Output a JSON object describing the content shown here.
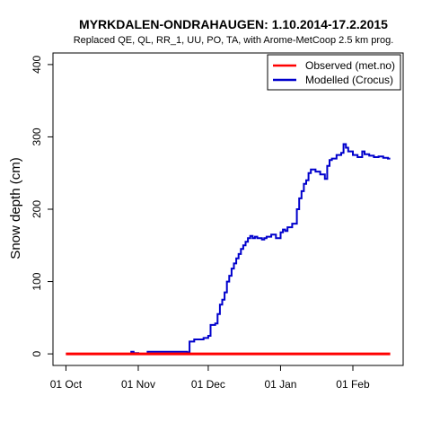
{
  "chart_data": {
    "type": "line",
    "title": "MYRKDALEN-ONDRAHAUGEN: 1.10.2014-17.2.2015",
    "subtitle": "Replaced QE, QL, RR_1, UU, PO, TA,  with Arome-MetCoop 2.5 km prog.",
    "xlabel": "",
    "ylabel": "Snow depth (cm)",
    "xlim": [
      "2014-10-01",
      "2015-02-17"
    ],
    "ylim": [
      0,
      400
    ],
    "yticks": [
      0,
      100,
      200,
      300,
      400
    ],
    "xticks": [
      {
        "date": "2014-10-01",
        "label": "01 Oct"
      },
      {
        "date": "2014-11-01",
        "label": "01 Nov"
      },
      {
        "date": "2014-12-01",
        "label": "01 Dec"
      },
      {
        "date": "2015-01-01",
        "label": "01 Jan"
      },
      {
        "date": "2015-02-01",
        "label": "01 Feb"
      }
    ],
    "grid": false,
    "legend": "top-right",
    "series": [
      {
        "name": "Observed (met.no)",
        "color": "#ff0000",
        "step": false,
        "x": [
          "2014-10-01",
          "2015-02-17"
        ],
        "y": [
          0,
          0
        ]
      },
      {
        "name": "Modelled (Crocus)",
        "color": "#0000cc",
        "step": true,
        "x": [
          "2014-10-01",
          "2014-10-29",
          "2014-10-30",
          "2014-11-01",
          "2014-11-05",
          "2014-11-22",
          "2014-11-23",
          "2014-11-25",
          "2014-11-29",
          "2014-12-01",
          "2014-12-02",
          "2014-12-04",
          "2014-12-05",
          "2014-12-06",
          "2014-12-07",
          "2014-12-08",
          "2014-12-09",
          "2014-12-10",
          "2014-12-11",
          "2014-12-12",
          "2014-12-13",
          "2014-12-14",
          "2014-12-15",
          "2014-12-16",
          "2014-12-17",
          "2014-12-18",
          "2014-12-19",
          "2014-12-20",
          "2014-12-21",
          "2014-12-22",
          "2014-12-24",
          "2014-12-25",
          "2014-12-26",
          "2014-12-28",
          "2014-12-30",
          "2015-01-01",
          "2015-01-02",
          "2015-01-03",
          "2015-01-04",
          "2015-01-06",
          "2015-01-08",
          "2015-01-09",
          "2015-01-10",
          "2015-01-11",
          "2015-01-12",
          "2015-01-13",
          "2015-01-14",
          "2015-01-16",
          "2015-01-18",
          "2015-01-20",
          "2015-01-21",
          "2015-01-22",
          "2015-01-23",
          "2015-01-25",
          "2015-01-27",
          "2015-01-28",
          "2015-01-29",
          "2015-01-30",
          "2015-02-01",
          "2015-02-03",
          "2015-02-05",
          "2015-02-06",
          "2015-02-08",
          "2015-02-10",
          "2015-02-12",
          "2015-02-14",
          "2015-02-16"
        ],
        "y": [
          0,
          3,
          1,
          0,
          3,
          2,
          17,
          20,
          22,
          25,
          40,
          42,
          55,
          68,
          75,
          85,
          100,
          108,
          118,
          125,
          132,
          138,
          145,
          150,
          155,
          160,
          163,
          160,
          162,
          160,
          158,
          160,
          162,
          165,
          160,
          168,
          172,
          170,
          175,
          180,
          200,
          215,
          225,
          235,
          240,
          250,
          255,
          252,
          248,
          242,
          260,
          268,
          270,
          275,
          278,
          290,
          285,
          280,
          275,
          272,
          280,
          276,
          274,
          272,
          273,
          271,
          270
        ]
      }
    ]
  }
}
